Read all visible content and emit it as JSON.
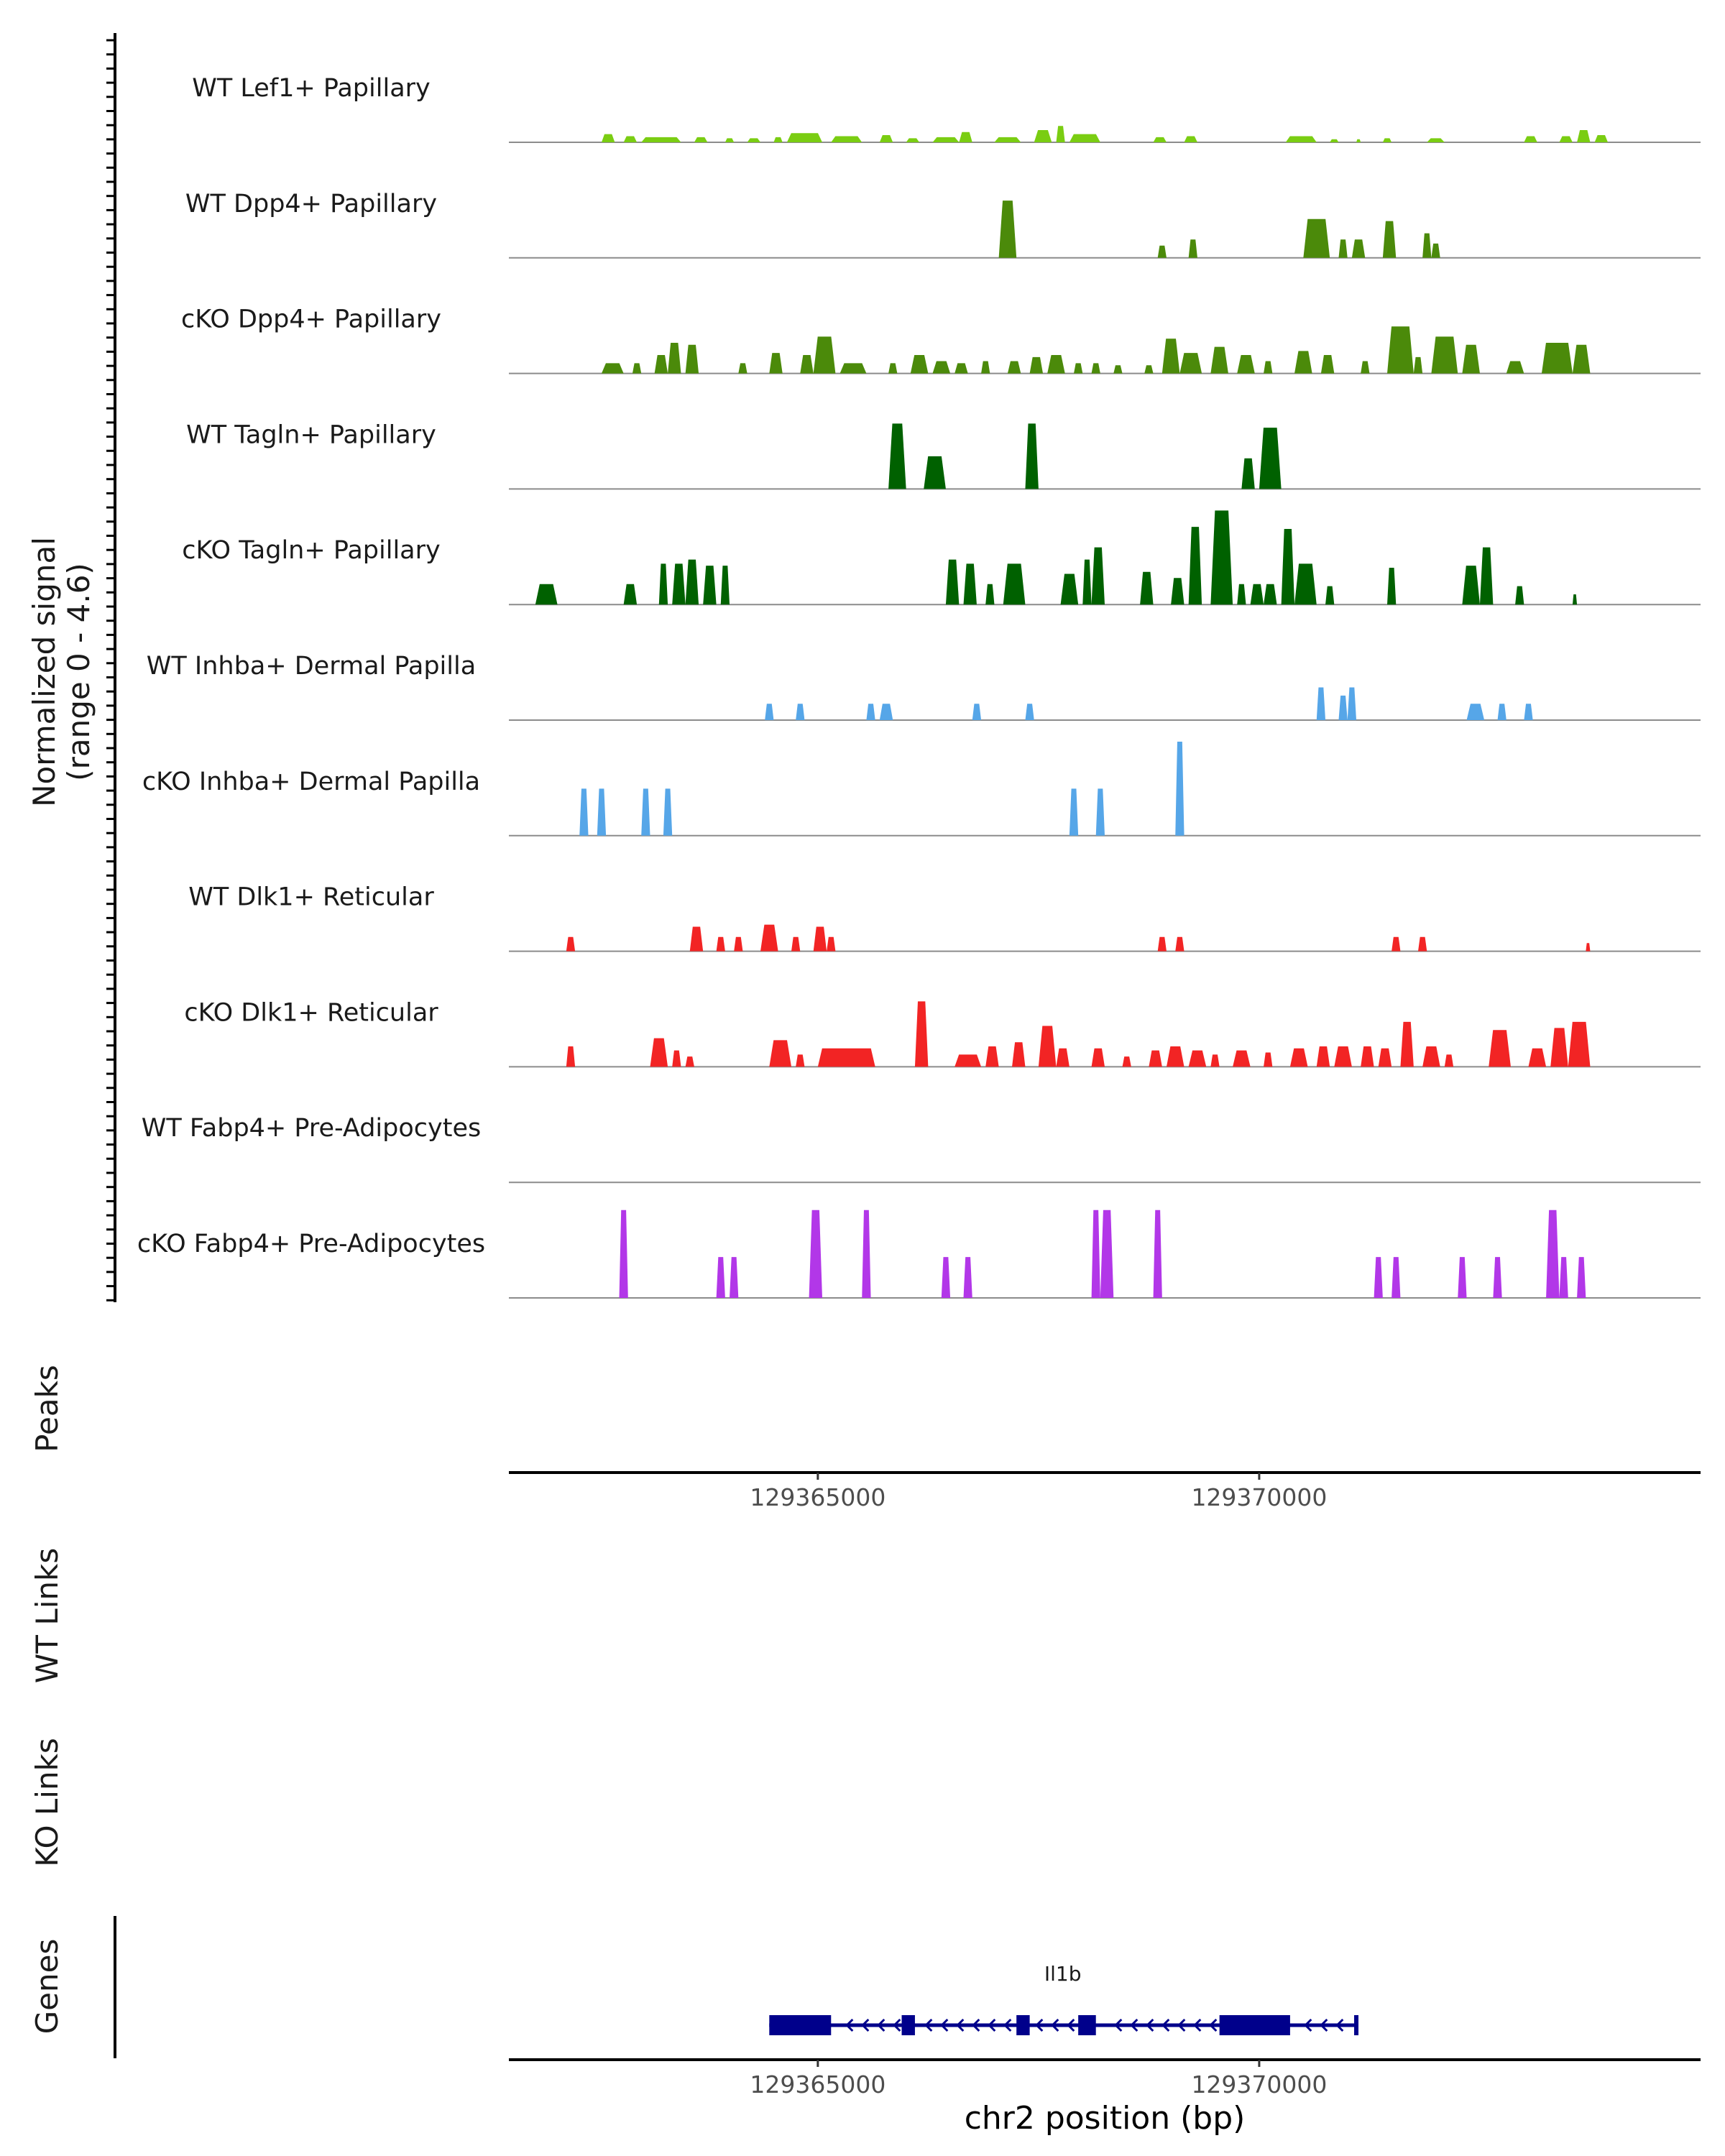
{
  "chart_data": {
    "type": "area",
    "figure_kind": "genome coverage plot",
    "signal_ylabel": [
      "Normalized signal",
      "(range 0 - 4.6)"
    ],
    "ylim": [
      0,
      4.6
    ],
    "xlim": [
      129361500,
      129375000
    ],
    "x_ticks": [
      129365000,
      129370000
    ],
    "x_tick_labels": [
      "129365000",
      "129370000"
    ],
    "xlabel": "chr2 position (bp)",
    "tracks": [
      {
        "name": "WT Lef1+ Papillary",
        "color": "#7ACD12",
        "segments": [
          [
            129362550,
            129362700,
            0.4
          ],
          [
            129362800,
            129362950,
            0.3
          ],
          [
            129363000,
            129363450,
            0.25
          ],
          [
            129363600,
            129363750,
            0.25
          ],
          [
            129363950,
            129364050,
            0.2
          ],
          [
            129364200,
            129364350,
            0.2
          ],
          [
            129364500,
            129364600,
            0.25
          ],
          [
            129364650,
            129365050,
            0.45
          ],
          [
            129365150,
            129365500,
            0.3
          ],
          [
            129365700,
            129365850,
            0.35
          ],
          [
            129366000,
            129366150,
            0.2
          ],
          [
            129366300,
            129366600,
            0.25
          ],
          [
            129366600,
            129366750,
            0.5
          ],
          [
            129367000,
            129367300,
            0.25
          ],
          [
            129367450,
            129367650,
            0.6
          ],
          [
            129367700,
            129367800,
            0.8
          ],
          [
            129367850,
            129368200,
            0.4
          ],
          [
            129368800,
            129368950,
            0.25
          ],
          [
            129369150,
            129369300,
            0.3
          ],
          [
            129370300,
            129370650,
            0.3
          ],
          [
            129370800,
            129370900,
            0.15
          ],
          [
            129371100,
            129371150,
            0.15
          ],
          [
            129371400,
            129371500,
            0.2
          ],
          [
            129371900,
            129372100,
            0.2
          ],
          [
            129373000,
            129373150,
            0.3
          ],
          [
            129373400,
            129373550,
            0.3
          ],
          [
            129373600,
            129373750,
            0.6
          ],
          [
            129373800,
            129373950,
            0.35
          ]
        ]
      },
      {
        "name": "WT Dpp4+ Papillary",
        "color": "#4B8A0A",
        "segments": [
          [
            129367050,
            129367250,
            2.8
          ],
          [
            129368850,
            129368950,
            0.6
          ],
          [
            129369200,
            129369300,
            0.9
          ],
          [
            129370500,
            129370800,
            1.9
          ],
          [
            129370900,
            129371000,
            0.9
          ],
          [
            129371050,
            129371200,
            0.9
          ],
          [
            129371400,
            129371550,
            1.8
          ],
          [
            129371850,
            129371950,
            1.2
          ],
          [
            129371950,
            129372050,
            0.7
          ]
        ]
      },
      {
        "name": "cKO Dpp4+ Papillary",
        "color": "#4B8A0A",
        "segments": [
          [
            129362550,
            129362800,
            0.5
          ],
          [
            129362900,
            129363000,
            0.5
          ],
          [
            129363150,
            129363300,
            0.9
          ],
          [
            129363300,
            129363450,
            1.5
          ],
          [
            129363500,
            129363650,
            1.4
          ],
          [
            129364100,
            129364200,
            0.5
          ],
          [
            129364450,
            129364600,
            1.0
          ],
          [
            129364800,
            129364950,
            0.9
          ],
          [
            129364950,
            129365200,
            1.8
          ],
          [
            129365250,
            129365550,
            0.5
          ],
          [
            129365800,
            129365900,
            0.5
          ],
          [
            129366050,
            129366250,
            0.9
          ],
          [
            129366300,
            129366500,
            0.6
          ],
          [
            129366550,
            129366700,
            0.5
          ],
          [
            129366850,
            129366950,
            0.6
          ],
          [
            129367150,
            129367300,
            0.6
          ],
          [
            129367400,
            129367550,
            0.8
          ],
          [
            129367600,
            129367800,
            0.9
          ],
          [
            129367900,
            129368000,
            0.5
          ],
          [
            129368100,
            129368200,
            0.5
          ],
          [
            129368350,
            129368450,
            0.4
          ],
          [
            129368700,
            129368800,
            0.4
          ],
          [
            129368900,
            129369100,
            1.7
          ],
          [
            129369100,
            129369350,
            1.0
          ],
          [
            129369450,
            129369650,
            1.3
          ],
          [
            129369750,
            129369950,
            0.9
          ],
          [
            129370050,
            129370150,
            0.6
          ],
          [
            129370400,
            129370600,
            1.1
          ],
          [
            129370700,
            129370850,
            0.9
          ],
          [
            129371150,
            129371250,
            0.6
          ],
          [
            129371450,
            129371750,
            2.3
          ],
          [
            129371750,
            129371850,
            0.8
          ],
          [
            129371950,
            129372250,
            1.8
          ],
          [
            129372300,
            129372500,
            1.4
          ],
          [
            129372800,
            129373000,
            0.6
          ],
          [
            129373200,
            129373550,
            1.5
          ],
          [
            129373550,
            129373750,
            1.4
          ]
        ]
      },
      {
        "name": "WT Tagln+ Papillary",
        "color": "#006100",
        "segments": [
          [
            129365800,
            129366000,
            3.2
          ],
          [
            129366200,
            129366450,
            1.6
          ],
          [
            129367350,
            129367500,
            3.2
          ],
          [
            129369800,
            129369950,
            1.5
          ],
          [
            129370000,
            129370250,
            3.0
          ]
        ]
      },
      {
        "name": "cKO Tagln+ Papillary",
        "color": "#006100",
        "segments": [
          [
            129361800,
            129362050,
            1.0
          ],
          [
            129362800,
            129362950,
            1.0
          ],
          [
            129363200,
            129363300,
            2.0
          ],
          [
            129363350,
            129363500,
            2.0
          ],
          [
            129363500,
            129363650,
            2.2
          ],
          [
            129363700,
            129363850,
            1.9
          ],
          [
            129363900,
            129364000,
            1.9
          ],
          [
            129366450,
            129366600,
            2.2
          ],
          [
            129366650,
            129366800,
            2.0
          ],
          [
            129366900,
            129367000,
            1.0
          ],
          [
            129367100,
            129367350,
            2.0
          ],
          [
            129367750,
            129367950,
            1.5
          ],
          [
            129368000,
            129368100,
            2.2
          ],
          [
            129368100,
            129368250,
            2.8
          ],
          [
            129368650,
            129368800,
            1.6
          ],
          [
            129369000,
            129369150,
            1.3
          ],
          [
            129369200,
            129369350,
            3.8
          ],
          [
            129369450,
            129369700,
            4.6
          ],
          [
            129369750,
            129369850,
            1.0
          ],
          [
            129369900,
            129370050,
            1.0
          ],
          [
            129370050,
            129370200,
            1.0
          ],
          [
            129370250,
            129370400,
            3.7
          ],
          [
            129370400,
            129370650,
            2.0
          ],
          [
            129370750,
            129370850,
            0.9
          ],
          [
            129371450,
            129371550,
            1.8
          ],
          [
            129372300,
            129372500,
            1.9
          ],
          [
            129372500,
            129372650,
            2.8
          ],
          [
            129372900,
            129373000,
            0.9
          ],
          [
            129373550,
            129373600,
            0.5
          ]
        ]
      },
      {
        "name": "WT Inhba+ Dermal Papilla",
        "color": "#56A6E8",
        "segments": [
          [
            129364400,
            129364500,
            0.8
          ],
          [
            129364750,
            129364850,
            0.8
          ],
          [
            129365550,
            129365650,
            0.8
          ],
          [
            129365700,
            129365850,
            0.8
          ],
          [
            129366750,
            129366850,
            0.8
          ],
          [
            129367350,
            129367450,
            0.8
          ],
          [
            129370650,
            129370750,
            1.6
          ],
          [
            129370900,
            129371000,
            1.2
          ],
          [
            129371000,
            129371100,
            1.6
          ],
          [
            129372350,
            129372550,
            0.8
          ],
          [
            129372700,
            129372800,
            0.8
          ],
          [
            129373000,
            129373100,
            0.8
          ]
        ]
      },
      {
        "name": "cKO Inhba+ Dermal Papilla",
        "color": "#56A6E8",
        "segments": [
          [
            129362300,
            129362400,
            2.3
          ],
          [
            129362500,
            129362600,
            2.3
          ],
          [
            129363000,
            129363100,
            2.3
          ],
          [
            129363250,
            129363350,
            2.3
          ],
          [
            129367850,
            129367950,
            2.3
          ],
          [
            129368150,
            129368250,
            2.3
          ],
          [
            129369050,
            129369150,
            4.6
          ]
        ]
      },
      {
        "name": "WT Dlk1+ Reticular",
        "color": "#F22424",
        "segments": [
          [
            129362150,
            129362250,
            0.7
          ],
          [
            129363550,
            129363700,
            1.2
          ],
          [
            129363850,
            129363950,
            0.7
          ],
          [
            129364050,
            129364150,
            0.7
          ],
          [
            129364350,
            129364550,
            1.3
          ],
          [
            129364700,
            129364800,
            0.7
          ],
          [
            129364950,
            129365100,
            1.2
          ],
          [
            129365100,
            129365200,
            0.7
          ],
          [
            129368850,
            129368950,
            0.7
          ],
          [
            129369050,
            129369150,
            0.7
          ],
          [
            129371500,
            129371600,
            0.7
          ],
          [
            129371800,
            129371900,
            0.7
          ],
          [
            129373700,
            129373750,
            0.4
          ]
        ]
      },
      {
        "name": "cKO Dlk1+ Reticular",
        "color": "#F22424",
        "segments": [
          [
            129362150,
            129362250,
            1.0
          ],
          [
            129363100,
            129363300,
            1.4
          ],
          [
            129363350,
            129363450,
            0.8
          ],
          [
            129363500,
            129363600,
            0.5
          ],
          [
            129364450,
            129364700,
            1.3
          ],
          [
            129364750,
            129364850,
            0.6
          ],
          [
            129365000,
            129365650,
            0.9
          ],
          [
            129366100,
            129366250,
            3.2
          ],
          [
            129366550,
            129366850,
            0.6
          ],
          [
            129366900,
            129367050,
            1.0
          ],
          [
            129367200,
            129367350,
            1.2
          ],
          [
            129367500,
            129367700,
            2.0
          ],
          [
            129367700,
            129367850,
            0.9
          ],
          [
            129368100,
            129368250,
            0.9
          ],
          [
            129368450,
            129368550,
            0.5
          ],
          [
            129368750,
            129368900,
            0.8
          ],
          [
            129368950,
            129369150,
            1.0
          ],
          [
            129369200,
            129369400,
            0.8
          ],
          [
            129369450,
            129369550,
            0.6
          ],
          [
            129369700,
            129369900,
            0.8
          ],
          [
            129370050,
            129370150,
            0.7
          ],
          [
            129370350,
            129370550,
            0.9
          ],
          [
            129370650,
            129370800,
            1.0
          ],
          [
            129370850,
            129371050,
            1.0
          ],
          [
            129371150,
            129371300,
            1.0
          ],
          [
            129371350,
            129371500,
            0.9
          ],
          [
            129371600,
            129371750,
            2.2
          ],
          [
            129371850,
            129372050,
            1.0
          ],
          [
            129372100,
            129372200,
            0.6
          ],
          [
            129372600,
            129372850,
            1.8
          ],
          [
            129373050,
            129373250,
            0.9
          ],
          [
            129373300,
            129373500,
            1.9
          ],
          [
            129373500,
            129373750,
            2.2
          ]
        ]
      },
      {
        "name": "WT Fabp4+ Pre-Adipocytes",
        "color": "#B237E8",
        "segments": []
      },
      {
        "name": "cKO Fabp4+ Pre-Adipocytes",
        "color": "#B237E8",
        "segments": [
          [
            129362750,
            129362850,
            4.3
          ],
          [
            129363850,
            129363950,
            2.0
          ],
          [
            129364000,
            129364100,
            2.0
          ],
          [
            129364900,
            129365050,
            4.3
          ],
          [
            129365500,
            129365600,
            4.3
          ],
          [
            129366400,
            129366500,
            2.0
          ],
          [
            129366650,
            129366750,
            2.0
          ],
          [
            129368100,
            129368200,
            4.3
          ],
          [
            129368200,
            129368350,
            4.3
          ],
          [
            129368800,
            129368900,
            4.3
          ],
          [
            129371300,
            129371400,
            2.0
          ],
          [
            129371500,
            129371600,
            2.0
          ],
          [
            129372250,
            129372350,
            2.0
          ],
          [
            129372650,
            129372750,
            2.0
          ],
          [
            129373250,
            129373400,
            4.3
          ],
          [
            129373400,
            129373500,
            2.0
          ],
          [
            129373600,
            129373700,
            2.0
          ]
        ]
      }
    ],
    "annotation_panels": [
      "Peaks",
      "WT Links",
      "KO Links",
      "Genes"
    ],
    "gene": {
      "name": "Il1b",
      "strand": "-",
      "start": 129364450,
      "end": 129371100,
      "exons": [
        [
          129364450,
          129365150
        ],
        [
          129365950,
          129366100
        ],
        [
          129367250,
          129367400
        ],
        [
          129367950,
          129368150
        ],
        [
          129369550,
          129370350
        ]
      ],
      "color": "#00008B"
    }
  }
}
